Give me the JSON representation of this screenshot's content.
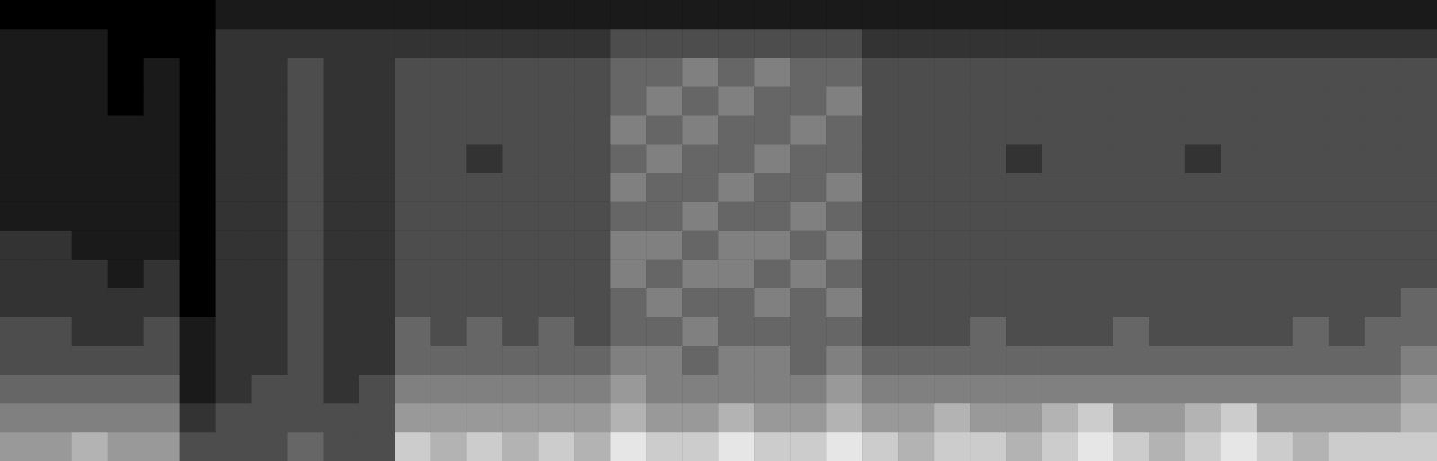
{
  "chart_data": {
    "type": "heatmap",
    "x": [
      0,
      1,
      2,
      3,
      4,
      5,
      6,
      7,
      8,
      9,
      10,
      11,
      12,
      13,
      14,
      15,
      16,
      17,
      18,
      19,
      20,
      21,
      22,
      23,
      24,
      25,
      26,
      27,
      28,
      29,
      30,
      31,
      32,
      33,
      34,
      35,
      36,
      37,
      38,
      39
    ],
    "y": [
      0,
      1,
      2,
      3,
      4,
      5,
      6,
      7,
      8,
      9,
      10,
      11,
      12,
      13,
      14,
      15
    ],
    "cells": [
      [
        6,
        6,
        7,
        6,
        6,
        3,
        3,
        3,
        4,
        3,
        3,
        8,
        7,
        8,
        7,
        8,
        7,
        9,
        8,
        8,
        9,
        8,
        8,
        9,
        8,
        7,
        8,
        8,
        7,
        8,
        9,
        8,
        7,
        8,
        9,
        8,
        7,
        8,
        8,
        8
      ],
      [
        5,
        5,
        5,
        5,
        5,
        2,
        3,
        3,
        3,
        3,
        3,
        6,
        6,
        6,
        6,
        6,
        6,
        7,
        6,
        6,
        7,
        6,
        6,
        7,
        6,
        6,
        7,
        6,
        6,
        7,
        8,
        6,
        6,
        7,
        8,
        6,
        6,
        6,
        6,
        7
      ],
      [
        4,
        4,
        4,
        4,
        4,
        1,
        2,
        3,
        3,
        2,
        3,
        5,
        5,
        5,
        5,
        5,
        5,
        6,
        5,
        5,
        5,
        5,
        5,
        6,
        5,
        5,
        5,
        5,
        5,
        5,
        5,
        5,
        5,
        5,
        5,
        5,
        5,
        5,
        5,
        6
      ],
      [
        3,
        3,
        3,
        3,
        3,
        1,
        2,
        2,
        3,
        2,
        2,
        4,
        4,
        4,
        4,
        4,
        4,
        5,
        5,
        4,
        5,
        5,
        4,
        5,
        4,
        4,
        4,
        4,
        4,
        4,
        4,
        4,
        4,
        4,
        4,
        4,
        4,
        4,
        4,
        5
      ],
      [
        3,
        3,
        2,
        2,
        3,
        1,
        2,
        2,
        3,
        2,
        2,
        4,
        3,
        4,
        3,
        4,
        3,
        4,
        4,
        5,
        4,
        4,
        4,
        4,
        3,
        3,
        3,
        4,
        3,
        3,
        3,
        4,
        3,
        3,
        3,
        3,
        4,
        3,
        4,
        4
      ],
      [
        2,
        2,
        2,
        2,
        2,
        0,
        2,
        2,
        3,
        2,
        2,
        3,
        3,
        3,
        3,
        3,
        3,
        4,
        5,
        4,
        4,
        5,
        4,
        5,
        3,
        3,
        3,
        3,
        3,
        3,
        3,
        3,
        3,
        3,
        3,
        3,
        3,
        3,
        3,
        4
      ],
      [
        2,
        2,
        2,
        1,
        2,
        0,
        2,
        2,
        3,
        2,
        2,
        3,
        3,
        3,
        3,
        3,
        3,
        5,
        4,
        5,
        5,
        4,
        5,
        4,
        3,
        3,
        3,
        3,
        3,
        3,
        3,
        3,
        3,
        3,
        3,
        3,
        3,
        3,
        3,
        3
      ],
      [
        2,
        2,
        1,
        1,
        1,
        0,
        2,
        2,
        3,
        2,
        2,
        3,
        3,
        3,
        3,
        3,
        3,
        5,
        5,
        4,
        5,
        5,
        4,
        5,
        3,
        3,
        3,
        3,
        3,
        3,
        3,
        3,
        3,
        3,
        3,
        3,
        3,
        3,
        3,
        3
      ],
      [
        1,
        1,
        1,
        1,
        1,
        0,
        2,
        2,
        3,
        2,
        2,
        3,
        3,
        3,
        3,
        3,
        3,
        4,
        4,
        5,
        4,
        4,
        5,
        4,
        3,
        3,
        3,
        3,
        3,
        3,
        3,
        3,
        3,
        3,
        3,
        3,
        3,
        3,
        3,
        3
      ],
      [
        1,
        1,
        1,
        1,
        1,
        0,
        2,
        2,
        3,
        2,
        2,
        3,
        3,
        3,
        3,
        3,
        3,
        5,
        4,
        4,
        5,
        4,
        4,
        5,
        3,
        3,
        3,
        3,
        3,
        3,
        3,
        3,
        3,
        3,
        3,
        3,
        3,
        3,
        3,
        3
      ],
      [
        1,
        1,
        1,
        1,
        1,
        0,
        2,
        2,
        3,
        2,
        2,
        3,
        3,
        2,
        3,
        3,
        3,
        4,
        5,
        4,
        4,
        5,
        4,
        4,
        3,
        3,
        3,
        3,
        2,
        3,
        3,
        3,
        3,
        2,
        3,
        3,
        3,
        3,
        3,
        3
      ],
      [
        1,
        1,
        1,
        1,
        1,
        0,
        2,
        2,
        3,
        2,
        2,
        3,
        3,
        3,
        3,
        3,
        3,
        5,
        4,
        5,
        4,
        4,
        5,
        4,
        3,
        3,
        3,
        3,
        3,
        3,
        3,
        3,
        3,
        3,
        3,
        3,
        3,
        3,
        3,
        3
      ],
      [
        1,
        1,
        1,
        0,
        1,
        0,
        2,
        2,
        3,
        2,
        2,
        3,
        3,
        3,
        3,
        3,
        3,
        4,
        5,
        4,
        5,
        4,
        4,
        5,
        3,
        3,
        3,
        3,
        3,
        3,
        3,
        3,
        3,
        3,
        3,
        3,
        3,
        3,
        3,
        3
      ],
      [
        1,
        1,
        1,
        0,
        1,
        0,
        2,
        2,
        3,
        2,
        2,
        3,
        3,
        3,
        3,
        3,
        3,
        4,
        4,
        5,
        4,
        5,
        4,
        4,
        3,
        3,
        3,
        3,
        3,
        3,
        3,
        3,
        3,
        3,
        3,
        3,
        3,
        3,
        3,
        3
      ],
      [
        1,
        1,
        1,
        0,
        0,
        0,
        2,
        2,
        2,
        2,
        2,
        2,
        2,
        2,
        2,
        2,
        2,
        3,
        3,
        3,
        3,
        3,
        3,
        3,
        2,
        2,
        2,
        2,
        2,
        2,
        2,
        2,
        2,
        2,
        2,
        2,
        2,
        2,
        2,
        2
      ],
      [
        0,
        0,
        0,
        0,
        0,
        0,
        1,
        1,
        1,
        1,
        1,
        1,
        1,
        1,
        1,
        1,
        1,
        1,
        1,
        1,
        1,
        1,
        1,
        1,
        1,
        1,
        1,
        1,
        1,
        1,
        1,
        1,
        1,
        1,
        1,
        1,
        1,
        1,
        1,
        1
      ]
    ],
    "color_range": [
      0,
      10
    ],
    "tick_labels": false,
    "grid": false
  }
}
